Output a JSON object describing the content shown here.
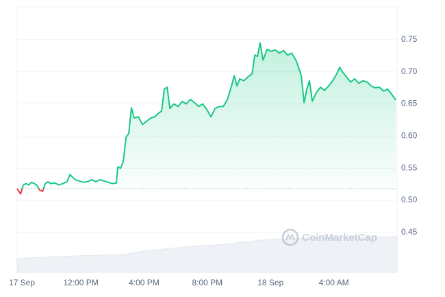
{
  "chart_data": {
    "type": "line",
    "watermark": "CoinMarketCap",
    "x": [
      7.97,
      8.19,
      8.36,
      8.54,
      8.71,
      8.88,
      9.06,
      9.23,
      9.4,
      9.58,
      9.75,
      9.92,
      10.1,
      10.35,
      10.61,
      10.87,
      11.13,
      11.31,
      11.48,
      11.65,
      11.91,
      12.17,
      12.43,
      12.69,
      12.95,
      13.21,
      13.47,
      13.73,
      13.99,
      14.25,
      14.34,
      14.51,
      14.68,
      14.86,
      15.03,
      15.2,
      15.38,
      15.64,
      15.9,
      16.16,
      16.42,
      16.68,
      16.94,
      17.11,
      17.28,
      17.46,
      17.63,
      17.89,
      18.15,
      18.41,
      18.67,
      18.93,
      19.19,
      19.45,
      19.71,
      19.97,
      20.23,
      20.49,
      20.75,
      21.01,
      21.27,
      21.53,
      21.7,
      21.87,
      22.05,
      22.31,
      22.57,
      22.83,
      23.0,
      23.17,
      23.34,
      23.52,
      23.78,
      24.04,
      24.3,
      24.56,
      24.82,
      25.08,
      25.34,
      25.6,
      25.77,
      25.94,
      26.12,
      26.29,
      26.46,
      26.64,
      26.9,
      27.16,
      27.41,
      27.67,
      27.93,
      28.19,
      28.37,
      28.54,
      28.8,
      29.06,
      29.32,
      29.58,
      29.84,
      30.1,
      30.36,
      30.62,
      30.88,
      31.14,
      31.4,
      31.66,
      31.92
    ],
    "series": [
      {
        "color": "#16c784",
        "color_below": "#ea3943",
        "values": [
          0.518,
          0.51,
          0.524,
          0.526,
          0.524,
          0.528,
          0.526,
          0.523,
          0.516,
          0.514,
          0.526,
          0.529,
          0.526,
          0.527,
          0.524,
          0.526,
          0.529,
          0.54,
          0.536,
          0.532,
          0.53,
          0.528,
          0.529,
          0.532,
          0.529,
          0.532,
          0.53,
          0.528,
          0.526,
          0.527,
          0.552,
          0.55,
          0.56,
          0.598,
          0.604,
          0.644,
          0.628,
          0.63,
          0.618,
          0.623,
          0.628,
          0.63,
          0.636,
          0.639,
          0.673,
          0.676,
          0.643,
          0.65,
          0.646,
          0.654,
          0.65,
          0.657,
          0.652,
          0.646,
          0.65,
          0.641,
          0.63,
          0.643,
          0.646,
          0.646,
          0.657,
          0.678,
          0.694,
          0.678,
          0.689,
          0.686,
          0.692,
          0.697,
          0.726,
          0.724,
          0.745,
          0.718,
          0.735,
          0.732,
          0.734,
          0.729,
          0.733,
          0.726,
          0.729,
          0.718,
          0.707,
          0.694,
          0.652,
          0.673,
          0.686,
          0.654,
          0.668,
          0.676,
          0.671,
          0.678,
          0.686,
          0.697,
          0.707,
          0.7,
          0.692,
          0.684,
          0.689,
          0.682,
          0.686,
          0.684,
          0.678,
          0.675,
          0.676,
          0.67,
          0.673,
          0.665,
          0.656
        ]
      }
    ],
    "baseline": 0.518,
    "xlim": [
      7.97,
      32
    ],
    "ylim": [
      0.388,
      0.801
    ],
    "xticks": [
      {
        "value": 8,
        "label": "17 Sep"
      },
      {
        "value": 12,
        "label": "12:00 PM"
      },
      {
        "value": 16,
        "label": "4:00 PM"
      },
      {
        "value": 20,
        "label": "8:00 PM"
      },
      {
        "value": 24,
        "label": "18 Sep"
      },
      {
        "value": 28,
        "label": "4:00 AM"
      }
    ],
    "yticks": [
      0.45,
      {
        "value": 0.5,
        "label": "0.50"
      },
      0.55,
      {
        "value": 0.6,
        "label": "0.60"
      },
      0.65,
      {
        "value": 0.7,
        "label": "0.70"
      },
      0.75
    ],
    "grid": true
  }
}
